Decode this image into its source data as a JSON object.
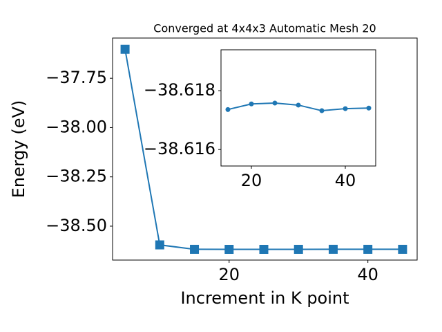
{
  "chart_data": [
    {
      "type": "line",
      "title": "Converged at 4x4x3 Automatic Mesh 20",
      "x_label": "Increment in K point",
      "y_label": "Energy (eV)",
      "x": [
        5,
        10,
        15,
        20,
        25,
        30,
        35,
        40,
        45
      ],
      "series": [
        {
          "color": "#1f77b4",
          "marker": "square",
          "values": [
            -37.603,
            -38.595,
            -38.6174,
            -38.6176,
            -38.6176,
            -38.6175,
            -38.6173,
            -38.6174,
            -38.6174
          ]
        }
      ],
      "xlim": [
        3.2,
        47.1
      ],
      "ylim": [
        -38.672,
        -37.546
      ],
      "xticks": [
        20,
        40
      ],
      "yticks": [
        {
          "value": -37.75,
          "label": "−37.75"
        },
        {
          "value": -38.0,
          "label": "−38.00"
        },
        {
          "value": -38.25,
          "label": "−38.25"
        },
        {
          "value": -38.5,
          "label": "−38.50"
        }
      ]
    },
    {
      "type": "line",
      "x": [
        15,
        20,
        25,
        30,
        35,
        40,
        45
      ],
      "series": [
        {
          "color": "#1f77b4",
          "marker": "circle",
          "values": [
            -38.61736,
            -38.61755,
            -38.61758,
            -38.61751,
            -38.61732,
            -38.61739,
            -38.61741
          ]
        }
      ],
      "xlim": [
        13.53,
        46.47
      ],
      "ylim": [
        -38.61544,
        -38.61939
      ],
      "xticks": [
        20,
        40
      ],
      "yticks": [
        {
          "value": -38.618,
          "label": "−38.618"
        },
        {
          "value": -38.616,
          "label": "−38.616"
        }
      ]
    }
  ]
}
